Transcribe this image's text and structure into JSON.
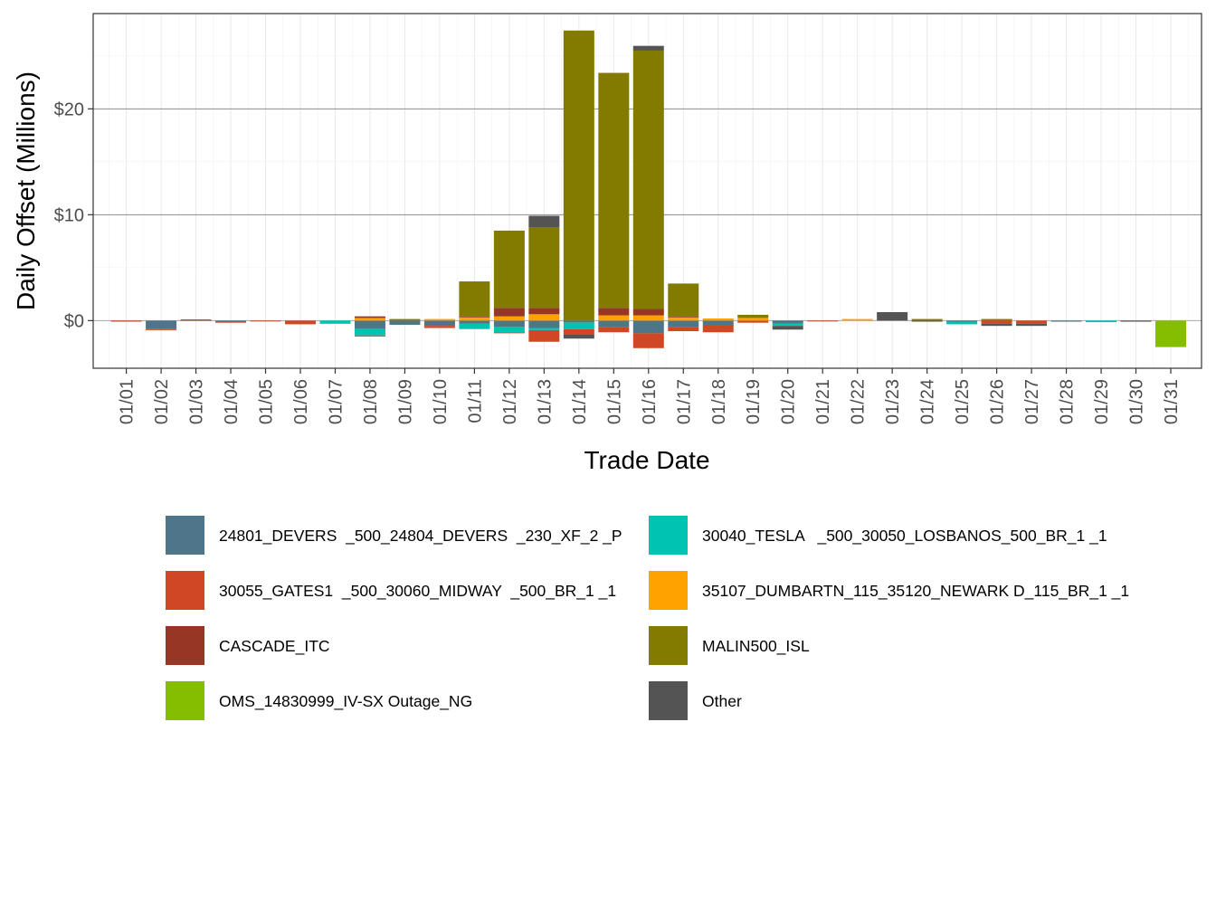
{
  "chart_data": {
    "type": "bar",
    "stacked": true,
    "title": "",
    "xlabel": "Trade Date",
    "ylabel": "Daily Offset (Millions)",
    "ylim": [
      -4.5,
      29
    ],
    "y_ticks": [
      0,
      10,
      20
    ],
    "y_tick_labels": [
      "$0",
      "$10",
      "$20"
    ],
    "legend_position": "bottom",
    "categories": [
      "01/01",
      "01/02",
      "01/03",
      "01/04",
      "01/05",
      "01/06",
      "01/07",
      "01/08",
      "01/09",
      "01/10",
      "01/11",
      "01/12",
      "01/13",
      "01/14",
      "01/15",
      "01/16",
      "01/17",
      "01/18",
      "01/19",
      "01/20",
      "01/21",
      "01/22",
      "01/23",
      "01/24",
      "01/25",
      "01/26",
      "01/27",
      "01/28",
      "01/29",
      "01/30",
      "01/31"
    ],
    "series": [
      {
        "name": "24801_DEVERS  _500_24804_DEVERS  _230_XF_2 _P",
        "color": "#4e7589",
        "values": [
          0,
          -0.8,
          0,
          -0.1,
          0,
          0,
          0,
          -0.8,
          -0.4,
          -0.5,
          -0.3,
          -0.6,
          -0.7,
          -0.2,
          -0.6,
          -1.2,
          -0.6,
          -0.4,
          0,
          -0.3,
          0,
          0,
          0,
          0,
          -0.1,
          0,
          0,
          -0.1,
          0,
          0,
          0
        ]
      },
      {
        "name": "30040_TESLA   _500_30050_LOSBANOS_500_BR_1 _1",
        "color": "#00c4b1",
        "values": [
          0,
          0,
          0,
          0,
          0,
          0,
          -0.3,
          -0.6,
          0,
          0,
          -0.5,
          -0.5,
          -0.2,
          -0.6,
          0,
          0,
          0,
          0,
          0,
          -0.2,
          0,
          0,
          0,
          0,
          -0.25,
          0,
          0,
          0,
          -0.15,
          0,
          0
        ]
      },
      {
        "name": "30055_GATES1  _500_30060_MIDWAY  _500_BR_1 _1",
        "color": "#d04723",
        "values": [
          -0.1,
          -0.1,
          0,
          -0.1,
          -0.05,
          -0.35,
          0,
          -0.1,
          0,
          -0.2,
          0,
          -0.1,
          -1.1,
          -0.5,
          -0.5,
          -1.4,
          -0.4,
          -0.7,
          -0.2,
          0,
          -0.05,
          0,
          0,
          0,
          0,
          -0.3,
          -0.3,
          0,
          0,
          0,
          0
        ]
      },
      {
        "name": "35107_DUMBARTN_115_35120_NEWARK D_115_BR_1 _1",
        "color": "#ffa200",
        "values": [
          0,
          0,
          0,
          0,
          0,
          0,
          0,
          0.25,
          0,
          0.15,
          0.3,
          0.4,
          0.6,
          0,
          0.5,
          0.5,
          0.3,
          0.2,
          0.25,
          0,
          0,
          0.15,
          0,
          0,
          0,
          0,
          0,
          0,
          0,
          0,
          0
        ]
      },
      {
        "name": "CASCADE_ITC",
        "color": "#963624",
        "values": [
          0,
          0,
          0.1,
          0,
          0,
          0,
          0,
          0.15,
          0,
          0,
          0.1,
          0.8,
          0.6,
          0,
          0.7,
          0.6,
          0.1,
          0,
          0,
          0,
          0,
          0,
          0,
          0,
          0,
          0,
          0,
          0,
          0,
          0,
          0
        ]
      },
      {
        "name": "MALIN500_ISL",
        "color": "#827b00",
        "values": [
          0,
          0,
          0,
          0,
          0,
          0,
          0,
          0,
          0.15,
          0,
          3.3,
          7.3,
          7.6,
          27.4,
          22.2,
          24.4,
          3.1,
          0,
          0.3,
          0,
          0,
          0,
          0,
          0.15,
          0,
          0.15,
          0,
          0,
          0,
          0,
          0
        ]
      },
      {
        "name": "OMS_14830999_IV-SX Outage_NG",
        "color": "#85bd00",
        "values": [
          0,
          0,
          0,
          0,
          0,
          0,
          0,
          0,
          0,
          0,
          0,
          0,
          0,
          0,
          0,
          0,
          0,
          0,
          0,
          0,
          0,
          0,
          0,
          0,
          0,
          0,
          0,
          0,
          0,
          0,
          -2.5
        ]
      },
      {
        "name": "Other",
        "color": "#545454",
        "values": [
          0,
          0,
          0,
          0,
          0,
          0,
          0,
          0,
          0,
          0,
          0,
          0,
          1.1,
          -0.4,
          0,
          0.45,
          0,
          0,
          0,
          -0.35,
          0,
          0,
          0.8,
          -0.1,
          0,
          -0.2,
          -0.2,
          0,
          0,
          -0.1,
          0
        ]
      }
    ],
    "legend_order": [
      "24801_DEVERS  _500_24804_DEVERS  _230_XF_2 _P",
      "30040_TESLA   _500_30050_LOSBANOS_500_BR_1 _1",
      "30055_GATES1  _500_30060_MIDWAY  _500_BR_1 _1",
      "35107_DUMBARTN_115_35120_NEWARK D_115_BR_1 _1",
      "CASCADE_ITC",
      "MALIN500_ISL",
      "OMS_14830999_IV-SX Outage_NG",
      "Other"
    ]
  }
}
